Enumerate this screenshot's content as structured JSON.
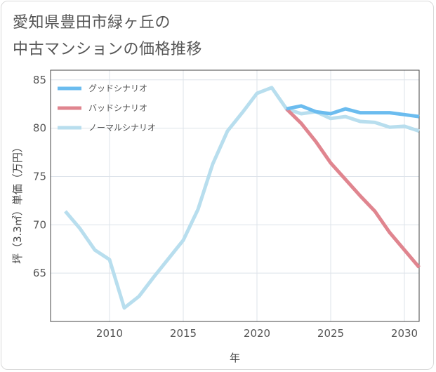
{
  "title": {
    "line1": "愛知県豊田市緑ヶ丘の",
    "line2": "中古マンションの価格推移"
  },
  "chart_data": {
    "type": "line",
    "xlabel": "年",
    "ylabel": "坪（3.3㎡）単価（万円）",
    "xlim": [
      2006,
      2031
    ],
    "ylim": [
      60,
      86
    ],
    "xticks": [
      2010,
      2015,
      2020,
      2025,
      2030
    ],
    "yticks": [
      65,
      70,
      75,
      80,
      85
    ],
    "grid": true,
    "legend_position": "top-left",
    "series": [
      {
        "name": "グッドシナリオ",
        "color": "#6bbcef",
        "x": [
          2022,
          2023,
          2024,
          2025,
          2026,
          2027,
          2028,
          2029,
          2030,
          2031
        ],
        "y": [
          82.0,
          82.3,
          81.7,
          81.5,
          82.0,
          81.6,
          81.6,
          81.6,
          81.4,
          81.2
        ]
      },
      {
        "name": "バッドシナリオ",
        "color": "#e0858f",
        "x": [
          2022,
          2023,
          2024,
          2025,
          2026,
          2027,
          2028,
          2029,
          2030,
          2031
        ],
        "y": [
          82.0,
          80.5,
          78.6,
          76.4,
          74.7,
          73.0,
          71.4,
          69.2,
          67.4,
          65.6
        ]
      },
      {
        "name": "ノーマルシナリオ",
        "color": "#b8deee",
        "x": [
          2007,
          2008,
          2009,
          2010,
          2011,
          2012,
          2013,
          2014,
          2015,
          2016,
          2017,
          2018,
          2019,
          2020,
          2021,
          2022,
          2023,
          2024,
          2025,
          2026,
          2027,
          2028,
          2029,
          2030,
          2031
        ],
        "y": [
          71.4,
          69.6,
          67.4,
          66.4,
          61.4,
          62.6,
          64.6,
          66.5,
          68.4,
          71.6,
          76.3,
          79.7,
          81.6,
          83.6,
          84.2,
          82.0,
          81.5,
          81.7,
          81.0,
          81.2,
          80.7,
          80.6,
          80.1,
          80.2,
          79.7
        ]
      }
    ]
  }
}
